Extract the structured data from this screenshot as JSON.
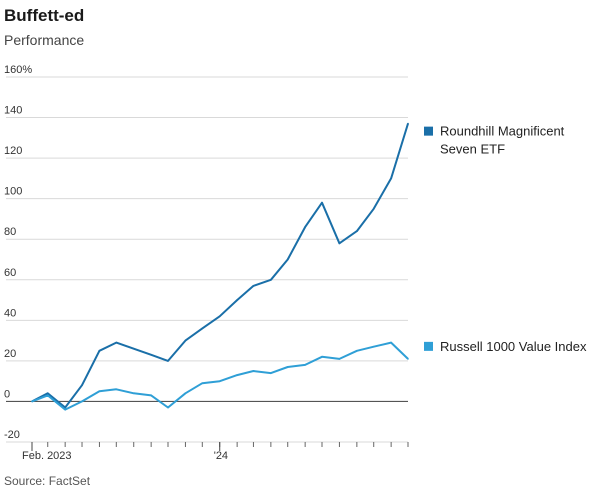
{
  "header": {
    "title": "Buffett-ed",
    "subtitle": "Performance"
  },
  "footer": {
    "source": "Source: FactSet"
  },
  "chart_data": {
    "type": "line",
    "title": "Buffett-ed",
    "subtitle": "Performance",
    "xlabel": "",
    "ylabel": "",
    "ylim": [
      -20,
      160
    ],
    "y_ticks": [
      {
        "value": 160,
        "label": "160%"
      },
      {
        "value": 140,
        "label": "140"
      },
      {
        "value": 120,
        "label": "120"
      },
      {
        "value": 100,
        "label": "100"
      },
      {
        "value": 80,
        "label": "80"
      },
      {
        "value": 60,
        "label": "60"
      },
      {
        "value": 40,
        "label": "40"
      },
      {
        "value": 20,
        "label": "20"
      },
      {
        "value": 0,
        "label": "0"
      },
      {
        "value": -20,
        "label": "-20"
      }
    ],
    "x_ticks": [
      {
        "value": "2023-02",
        "label": "Feb. 2023"
      },
      {
        "value": "2024-01",
        "label": "'24"
      }
    ],
    "grid": true,
    "legend": "right",
    "x": [
      "2023-02",
      "2023-03",
      "2023-04",
      "2023-05",
      "2023-06",
      "2023-07",
      "2023-08",
      "2023-09",
      "2023-10",
      "2023-11",
      "2023-12",
      "2024-01",
      "2024-02",
      "2024-03",
      "2024-04",
      "2024-05",
      "2024-06",
      "2024-07",
      "2024-08",
      "2024-09",
      "2024-10",
      "2024-11",
      "2024-12"
    ],
    "series": [
      {
        "name": "Roundhill Magnificent Seven ETF",
        "color": "#1a6fa8",
        "values": [
          0,
          4,
          -3,
          8,
          25,
          29,
          26,
          23,
          20,
          30,
          36,
          42,
          50,
          57,
          60,
          70,
          86,
          98,
          78,
          84,
          95,
          110,
          137
        ]
      },
      {
        "name": "Russell 1000 Value Index",
        "color": "#2f9fd6",
        "values": [
          0,
          3,
          -4,
          0,
          5,
          6,
          4,
          3,
          -3,
          4,
          9,
          10,
          13,
          15,
          14,
          17,
          18,
          22,
          21,
          25,
          27,
          29,
          21
        ]
      }
    ]
  }
}
